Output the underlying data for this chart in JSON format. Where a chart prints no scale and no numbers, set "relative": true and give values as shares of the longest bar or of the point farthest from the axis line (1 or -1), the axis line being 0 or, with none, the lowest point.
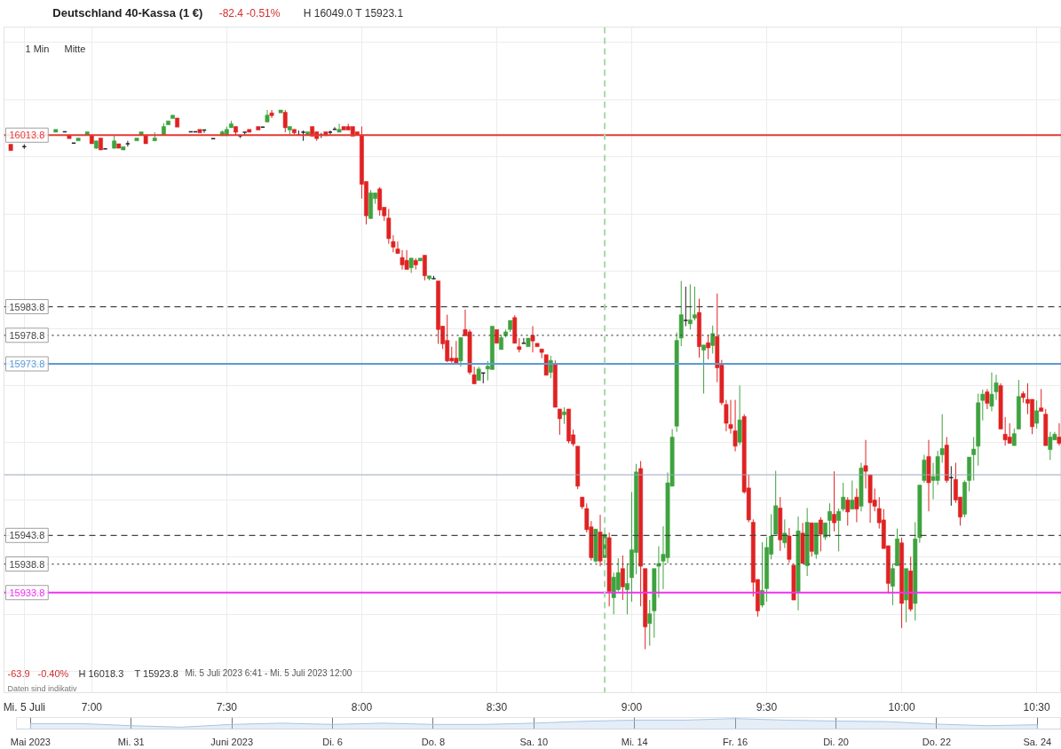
{
  "chart_data": [
    {
      "type": "candlestick",
      "title": "Deutschland 40-Kassa (1 €)",
      "subtitle": "-82.4 -0.51% H 16049.0 T 15923.1",
      "annotations": [
        "1 Min",
        "Mitte",
        "-63.9",
        "-0.40%",
        "H 16018.3",
        "T 15923.8",
        "Mi. 5 Juli 2023 6:41 - Mi. 5 Juli 2023 12:00",
        "Daten sind indikativ"
      ],
      "x": [
        "2023-07-05T06:42",
        "2023-07-05T06:45",
        "2023-07-05T06:52",
        "2023-07-05T06:54",
        "2023-07-05T06:55",
        "2023-07-05T06:56",
        "2023-07-05T06:57",
        "2023-07-05T06:59",
        "2023-07-05T07:00",
        "2023-07-05T07:01",
        "2023-07-05T07:02",
        "2023-07-05T07:03",
        "2023-07-05T07:05",
        "2023-07-05T07:06",
        "2023-07-05T07:07",
        "2023-07-05T07:08",
        "2023-07-05T07:10",
        "2023-07-05T07:11",
        "2023-07-05T07:12",
        "2023-07-05T07:14",
        "2023-07-05T07:16",
        "2023-07-05T07:17",
        "2023-07-05T07:18",
        "2023-07-05T07:19",
        "2023-07-05T07:22",
        "2023-07-05T07:23",
        "2023-07-05T07:24",
        "2023-07-05T07:25",
        "2023-07-05T07:27",
        "2023-07-05T07:29",
        "2023-07-05T07:30",
        "2023-07-05T07:31",
        "2023-07-05T07:32",
        "2023-07-05T07:33",
        "2023-07-05T07:34",
        "2023-07-05T07:35",
        "2023-07-05T07:37",
        "2023-07-05T07:38",
        "2023-07-05T07:39",
        "2023-07-05T07:40",
        "2023-07-05T07:42",
        "2023-07-05T07:43",
        "2023-07-05T07:44",
        "2023-07-05T07:45",
        "2023-07-05T07:46",
        "2023-07-05T07:47",
        "2023-07-05T07:48",
        "2023-07-05T07:49",
        "2023-07-05T07:50",
        "2023-07-05T07:51",
        "2023-07-05T07:52",
        "2023-07-05T07:53",
        "2023-07-05T07:54",
        "2023-07-05T07:55",
        "2023-07-05T07:56",
        "2023-07-05T07:57",
        "2023-07-05T07:58",
        "2023-07-05T07:59",
        "2023-07-05T08:00",
        "2023-07-05T08:01",
        "2023-07-05T08:02",
        "2023-07-05T08:03",
        "2023-07-05T08:04",
        "2023-07-05T08:05",
        "2023-07-05T08:06",
        "2023-07-05T08:07",
        "2023-07-05T08:08",
        "2023-07-05T08:09",
        "2023-07-05T08:10",
        "2023-07-05T08:11",
        "2023-07-05T08:12",
        "2023-07-05T08:13",
        "2023-07-05T08:14",
        "2023-07-05T08:15",
        "2023-07-05T08:16",
        "2023-07-05T08:17",
        "2023-07-05T08:18",
        "2023-07-05T08:19",
        "2023-07-05T08:20",
        "2023-07-05T08:21",
        "2023-07-05T08:22",
        "2023-07-05T08:23",
        "2023-07-05T08:24",
        "2023-07-05T08:25",
        "2023-07-05T08:26",
        "2023-07-05T08:27",
        "2023-07-05T08:28",
        "2023-07-05T08:29",
        "2023-07-05T08:30",
        "2023-07-05T08:31",
        "2023-07-05T08:32",
        "2023-07-05T08:33",
        "2023-07-05T08:34",
        "2023-07-05T08:35",
        "2023-07-05T08:36",
        "2023-07-05T08:37",
        "2023-07-05T08:38",
        "2023-07-05T08:39",
        "2023-07-05T08:40",
        "2023-07-05T08:41",
        "2023-07-05T08:42",
        "2023-07-05T08:43",
        "2023-07-05T08:44",
        "2023-07-05T08:45",
        "2023-07-05T08:46",
        "2023-07-05T08:47",
        "2023-07-05T08:48",
        "2023-07-05T08:49",
        "2023-07-05T08:50",
        "2023-07-05T08:51",
        "2023-07-05T08:52",
        "2023-07-05T08:53",
        "2023-07-05T08:54",
        "2023-07-05T08:55",
        "2023-07-05T08:56",
        "2023-07-05T08:57",
        "2023-07-05T08:58",
        "2023-07-05T08:59",
        "2023-07-05T09:00",
        "2023-07-05T09:01",
        "2023-07-05T09:02",
        "2023-07-05T09:03",
        "2023-07-05T09:04",
        "2023-07-05T09:05",
        "2023-07-05T09:06",
        "2023-07-05T09:07",
        "2023-07-05T09:08",
        "2023-07-05T09:09",
        "2023-07-05T09:10",
        "2023-07-05T09:11",
        "2023-07-05T09:12",
        "2023-07-05T09:13",
        "2023-07-05T09:14",
        "2023-07-05T09:15",
        "2023-07-05T09:16",
        "2023-07-05T09:17",
        "2023-07-05T09:18",
        "2023-07-05T09:19",
        "2023-07-05T09:20",
        "2023-07-05T09:21",
        "2023-07-05T09:22",
        "2023-07-05T09:23",
        "2023-07-05T09:24",
        "2023-07-05T09:25",
        "2023-07-05T09:26",
        "2023-07-05T09:27",
        "2023-07-05T09:28",
        "2023-07-05T09:29",
        "2023-07-05T09:30",
        "2023-07-05T09:31",
        "2023-07-05T09:32",
        "2023-07-05T09:33",
        "2023-07-05T09:34",
        "2023-07-05T09:35",
        "2023-07-05T09:36",
        "2023-07-05T09:37",
        "2023-07-05T09:38",
        "2023-07-05T09:39",
        "2023-07-05T09:40",
        "2023-07-05T09:41",
        "2023-07-05T09:42",
        "2023-07-05T09:43",
        "2023-07-05T09:44",
        "2023-07-05T09:45",
        "2023-07-05T09:46",
        "2023-07-05T09:47",
        "2023-07-05T09:48",
        "2023-07-05T09:49",
        "2023-07-05T09:50",
        "2023-07-05T09:51",
        "2023-07-05T09:52",
        "2023-07-05T09:53",
        "2023-07-05T09:54",
        "2023-07-05T09:55",
        "2023-07-05T09:56",
        "2023-07-05T09:57",
        "2023-07-05T09:58",
        "2023-07-05T09:59",
        "2023-07-05T10:00",
        "2023-07-05T10:01",
        "2023-07-05T10:02",
        "2023-07-05T10:03",
        "2023-07-05T10:04",
        "2023-07-05T10:05",
        "2023-07-05T10:06",
        "2023-07-05T10:07",
        "2023-07-05T10:08",
        "2023-07-05T10:09",
        "2023-07-05T10:10",
        "2023-07-05T10:11",
        "2023-07-05T10:12",
        "2023-07-05T10:13",
        "2023-07-05T10:14",
        "2023-07-05T10:15",
        "2023-07-05T10:16",
        "2023-07-05T10:17",
        "2023-07-05T10:18",
        "2023-07-05T10:19",
        "2023-07-05T10:20",
        "2023-07-05T10:21",
        "2023-07-05T10:22",
        "2023-07-05T10:23",
        "2023-07-05T10:24",
        "2023-07-05T10:25",
        "2023-07-05T10:26",
        "2023-07-05T10:27",
        "2023-07-05T10:28",
        "2023-07-05T10:29",
        "2023-07-05T10:30",
        "2023-07-05T10:31",
        "2023-07-05T10:32",
        "2023-07-05T10:33",
        "2023-07-05T10:34",
        "2023-07-05T10:35"
      ],
      "ohlc": [
        [
          16012.2,
          16012.2,
          16011.1,
          16011.1
        ],
        [
          16011.8,
          16012.2,
          16011.4,
          16011.8
        ],
        [
          16014.3,
          16014.8,
          16014.3,
          16014.8
        ],
        [
          16014.4,
          16014.4,
          16014.4,
          16014.4
        ],
        [
          16013.8,
          16013.8,
          16013.2,
          16013.2
        ],
        [
          16012.4,
          16012.4,
          16012.4,
          16012.4
        ],
        [
          16012.8,
          16013.3,
          16012.8,
          16013.3
        ],
        [
          16013.8,
          16014.4,
          16013.8,
          16014.4
        ],
        [
          16013.8,
          16013.8,
          16012.3,
          16012.3
        ],
        [
          16011.5,
          16012.8,
          16011.4,
          16012.8
        ],
        [
          16013.3,
          16013.3,
          16011.2,
          16011.2
        ],
        [
          16011.4,
          16011.4,
          16011.4,
          16011.4
        ],
        [
          16011.5,
          16013.7,
          16011.4,
          16012.8
        ],
        [
          16012.3,
          16012.3,
          16011.5,
          16011.5
        ],
        [
          16011.2,
          16011.8,
          16011.2,
          16011.8
        ],
        [
          16012.3,
          16012.8,
          16011.8,
          16012.3
        ],
        [
          16012.8,
          16013.3,
          16012.8,
          16013.3
        ],
        [
          16013.8,
          16014.4,
          16013.8,
          16014.4
        ],
        [
          16013.8,
          16013.8,
          16012.3,
          16012.3
        ],
        [
          16012.8,
          16014.3,
          16012.8,
          16013.3
        ],
        [
          16013.8,
          16015.9,
          16013.8,
          16015.3
        ],
        [
          16015.6,
          16016.3,
          16015.6,
          16016.3
        ],
        [
          16016.7,
          16017.3,
          16016.7,
          16017.3
        ],
        [
          16016.8,
          16016.8,
          16015.2,
          16015.2
        ],
        [
          16014.4,
          16014.4,
          16014.4,
          16014.4
        ],
        [
          16014.4,
          16014.4,
          16014.4,
          16014.4
        ],
        [
          16014.8,
          16014.8,
          16014.2,
          16014.2
        ],
        [
          16014.7,
          16014.7,
          16014.2,
          16014.7
        ],
        [
          16013.2,
          16013.2,
          16013.2,
          16013.2
        ],
        [
          16013.7,
          16014.6,
          16013.7,
          16014.4
        ],
        [
          16013.7,
          16015.3,
          16013.7,
          16014.8
        ],
        [
          16015.1,
          16016.3,
          16015.1,
          16015.8
        ],
        [
          16015.3,
          16015.3,
          16013.8,
          16014.3
        ],
        [
          16013.7,
          16013.7,
          16013.3,
          16013.7
        ],
        [
          16014.3,
          16014.3,
          16013.9,
          16014.3
        ],
        [
          16014.8,
          16014.8,
          16014.3,
          16014.3
        ],
        [
          16015.3,
          16015.3,
          16014.7,
          16014.7
        ],
        [
          16015.2,
          16015.2,
          16015.2,
          16015.2
        ],
        [
          16016.1,
          16018.2,
          16016.1,
          16017.3
        ],
        [
          16017.7,
          16018.2,
          16016.8,
          16017.2
        ],
        [
          16017.7,
          16018.2,
          16017.7,
          16018.2
        ],
        [
          16017.8,
          16018.2,
          16014.3,
          16015.1
        ],
        [
          16014.7,
          16015.3,
          16013.9,
          16015.3
        ],
        [
          16014.8,
          16014.8,
          16013.9,
          16014.2
        ],
        [
          16013.8,
          16014.6,
          16013.7,
          16013.8
        ],
        [
          16014.3,
          16014.6,
          16012.8,
          16014.3
        ],
        [
          16013.8,
          16014.4,
          16013.8,
          16014.4
        ],
        [
          16015.3,
          16015.3,
          16013.6,
          16013.6
        ],
        [
          16014.4,
          16014.4,
          16012.8,
          16013.2
        ],
        [
          16013.8,
          16014.2,
          16013.3,
          16013.8
        ],
        [
          16014.4,
          16014.4,
          16013.7,
          16013.7
        ],
        [
          16014.3,
          16014.6,
          16013.9,
          16014.3
        ],
        [
          16014.8,
          16015.2,
          16014.8,
          16014.8
        ],
        [
          16014.3,
          16015.8,
          16014.3,
          16014.8
        ],
        [
          16015.3,
          16015.3,
          16014.7,
          16014.7
        ],
        [
          16015.3,
          16015.8,
          16014.7,
          16014.7
        ],
        [
          16015.3,
          16015.3,
          16013.6,
          16013.6
        ],
        [
          16014.4,
          16014.4,
          16013.8,
          16013.8
        ],
        [
          16013.8,
          16015.3,
          16002.7,
          16005.2
        ],
        [
          16005.7,
          16005.7,
          15998.2,
          15999.7
        ],
        [
          15999.2,
          16004.2,
          15999.2,
          16003.7
        ],
        [
          16002.7,
          16003.7,
          16001.8,
          16003.7
        ],
        [
          16004.4,
          16004.7,
          15999.7,
          16000.7
        ],
        [
          16001.2,
          16001.2,
          15998.8,
          15999.7
        ],
        [
          15999.3,
          16000.9,
          15994.8,
          15995.7
        ],
        [
          15995.2,
          15996.3,
          15993.3,
          15994.2
        ],
        [
          15993.9,
          15995.2,
          15993.1,
          15993.1
        ],
        [
          15992.4,
          15993.7,
          15990.3,
          15991.1
        ],
        [
          15991.9,
          15993.7,
          15990.3,
          15990.3
        ],
        [
          15990.6,
          15992.3,
          15989.7,
          15992.3
        ],
        [
          15991.9,
          15992.3,
          15990.3,
          15991.1
        ],
        [
          15991.8,
          15992.3,
          15991.8,
          15992.3
        ],
        [
          15992.8,
          15992.8,
          15988.4,
          15989.2
        ],
        [
          15988.7,
          15989.2,
          15988.4,
          15989.2
        ],
        [
          15988.7,
          15989.2,
          15988.7,
          15988.7
        ],
        [
          15988.3,
          15988.3,
          15977.3,
          15979.8
        ],
        [
          15980.4,
          15980.4,
          15976.4,
          15977.3
        ],
        [
          15977.9,
          15982.4,
          15974.1,
          15974.3
        ],
        [
          15974.8,
          15976.8,
          15974.0,
          15974.3
        ],
        [
          15974.8,
          15977.8,
          15973.9,
          15973.9
        ],
        [
          15974.3,
          15978.4,
          15973.3,
          15978.4
        ],
        [
          15979.8,
          15983.3,
          15978.7,
          15978.7
        ],
        [
          15979.4,
          15979.8,
          15971.9,
          15972.3
        ],
        [
          15971.9,
          15973.3,
          15970.3,
          15970.3
        ],
        [
          15970.9,
          15973.3,
          15970.9,
          15972.9
        ],
        [
          15972.2,
          15972.2,
          15970.4,
          15972.2
        ],
        [
          15972.9,
          15974.3,
          15970.9,
          15973.4
        ],
        [
          15972.8,
          15980.4,
          15972.8,
          15980.4
        ],
        [
          15979.8,
          15979.8,
          15977.4,
          15977.4
        ],
        [
          15976.3,
          15978.8,
          15976.3,
          15978.4
        ],
        [
          15978.7,
          15979.8,
          15978.4,
          15979.4
        ],
        [
          15979.8,
          15981.4,
          15979.4,
          15981.4
        ],
        [
          15981.9,
          15982.3,
          15977.4,
          15977.4
        ],
        [
          15976.8,
          15978.3,
          15975.8,
          15976.3
        ],
        [
          15977.4,
          15978.3,
          15977.4,
          15977.4
        ],
        [
          15976.8,
          15978.3,
          15976.8,
          15978.3
        ],
        [
          15978.8,
          15980.4,
          15975.8,
          15977.8
        ],
        [
          15977.4,
          15977.4,
          15976.8,
          15976.8
        ],
        [
          15976.4,
          15976.4,
          15974.8,
          15975.8
        ],
        [
          15975.4,
          15975.4,
          15971.8,
          15971.8
        ],
        [
          15972.3,
          15975.2,
          15971.3,
          15974.4
        ],
        [
          15973.8,
          15974.4,
          15966.2,
          15966.2
        ],
        [
          15965.9,
          15965.9,
          15961.4,
          15964.2
        ],
        [
          15964.9,
          15966.2,
          15963.3,
          15965.4
        ],
        [
          15965.9,
          15965.9,
          15959.9,
          15960.3
        ],
        [
          15961.4,
          15962.3,
          15959.4,
          15959.8
        ],
        [
          15959.4,
          15959.4,
          15951.9,
          15952.4
        ],
        [
          15950.5,
          15950.5,
          15948.4,
          15948.8
        ],
        [
          15948.5,
          15949.4,
          15944.3,
          15944.8
        ],
        [
          15945.3,
          15946.3,
          15939.4,
          15939.9
        ],
        [
          15939.3,
          15944.9,
          15939.0,
          15944.9
        ],
        [
          15944.4,
          15947.4,
          15938.4,
          15939.3
        ],
        [
          15939.9,
          15944.3,
          15939.9,
          15944.0
        ],
        [
          15943.4,
          15944.3,
          15931.4,
          15934.0
        ],
        [
          15932.9,
          15937.3,
          15930.0,
          15936.5
        ],
        [
          15934.3,
          15939.8,
          15934.0,
          15937.3
        ],
        [
          15938.0,
          15940.3,
          15932.5,
          15934.8
        ],
        [
          15934.3,
          15938.9,
          15930.0,
          15935.4
        ],
        [
          15936.4,
          15951.4,
          15932.2,
          15941.3
        ],
        [
          15940.8,
          15956.3,
          15937.0,
          15954.9
        ],
        [
          15955.5,
          15956.8,
          15931.4,
          15938.4
        ],
        [
          15938.0,
          15938.0,
          15923.9,
          15927.8
        ],
        [
          15928.4,
          15932.5,
          15924.5,
          15930.1
        ],
        [
          15930.6,
          15938.0,
          15925.9,
          15938.0
        ],
        [
          15938.4,
          15941.9,
          15932.9,
          15938.9
        ],
        [
          15939.3,
          15945.4,
          15934.4,
          15940.5
        ],
        [
          15939.9,
          15954.8,
          15938.9,
          15953.0
        ],
        [
          15952.4,
          15962.4,
          15952.4,
          15961.0
        ],
        [
          15962.9,
          15979.3,
          15961.9,
          15977.9
        ],
        [
          15978.3,
          15988.3,
          15976.9,
          15982.4
        ],
        [
          15981.4,
          15987.3,
          15980.4,
          15981.4
        ],
        [
          15980.8,
          15987.7,
          15979.8,
          15981.5
        ],
        [
          15981.8,
          15987.3,
          15981.4,
          15982.4
        ],
        [
          15982.8,
          15985.2,
          15974.9,
          15976.8
        ],
        [
          15976.2,
          15977.1,
          15968.6,
          15977.1
        ],
        [
          15977.5,
          15978.9,
          15974.6,
          15976.6
        ],
        [
          15977.0,
          15980.5,
          15975.6,
          15979.1
        ],
        [
          15978.6,
          15986.1,
          15970.6,
          15973.1
        ],
        [
          15973.6,
          15974.5,
          15966.6,
          15967.0
        ],
        [
          15966.7,
          15967.5,
          15962.0,
          15963.4
        ],
        [
          15963.2,
          15967.5,
          15961.6,
          15962.5
        ],
        [
          15962.1,
          15967.5,
          15958.5,
          15959.4
        ],
        [
          15960.1,
          15970.0,
          15959.6,
          15964.0
        ],
        [
          15964.6,
          15965.0,
          15951.1,
          15951.4
        ],
        [
          15952.1,
          15954.4,
          15946.1,
          15946.5
        ],
        [
          15946.1,
          15946.6,
          15933.1,
          15935.6
        ],
        [
          15936.1,
          15936.1,
          15929.6,
          15930.6
        ],
        [
          15931.6,
          15942.6,
          15931.2,
          15934.2
        ],
        [
          15934.5,
          15943.5,
          15932.2,
          15941.7
        ],
        [
          15940.5,
          15947.5,
          15939.6,
          15943.7
        ],
        [
          15944.0,
          15955.1,
          15944.0,
          15949.0
        ],
        [
          15948.6,
          15950.5,
          15941.1,
          15943.0
        ],
        [
          15942.5,
          15946.6,
          15941.6,
          15944.2
        ],
        [
          15943.7,
          15945.1,
          15939.0,
          15939.6
        ],
        [
          15938.6,
          15938.6,
          15932.5,
          15932.5
        ],
        [
          15934.0,
          15947.1,
          15930.7,
          15944.6
        ],
        [
          15944.2,
          15946.0,
          15938.9,
          15938.9
        ],
        [
          15938.5,
          15948.6,
          15936.7,
          15946.1
        ],
        [
          15946.0,
          15946.0,
          15940.1,
          15941.0
        ],
        [
          15940.5,
          15946.0,
          15939.7,
          15946.0
        ],
        [
          15946.5,
          15947.0,
          15941.0,
          15944.0
        ],
        [
          15943.5,
          15946.0,
          15943.0,
          15946.0
        ],
        [
          15946.4,
          15949.4,
          15943.5,
          15948.0
        ],
        [
          15947.5,
          15955.0,
          15944.5,
          15946.0
        ],
        [
          15946.4,
          15948.5,
          15941.0,
          15948.0
        ],
        [
          15948.4,
          15953.0,
          15948.0,
          15950.5
        ],
        [
          15950.0,
          15950.5,
          15945.5,
          15947.9
        ],
        [
          15948.4,
          15953.4,
          15948.4,
          15950.0
        ],
        [
          15950.5,
          15952.0,
          15946.1,
          15948.4
        ],
        [
          15948.9,
          15956.5,
          15948.0,
          15955.6
        ],
        [
          15956.0,
          15960.5,
          15952.0,
          15955.0
        ],
        [
          15954.4,
          15954.4,
          15946.0,
          15949.5
        ],
        [
          15950.0,
          15952.0,
          15948.0,
          15948.9
        ],
        [
          15948.5,
          15950.5,
          15945.0,
          15946.0
        ],
        [
          15946.5,
          15948.4,
          15941.5,
          15941.5
        ],
        [
          15942.0,
          15942.0,
          15933.6,
          15935.4
        ],
        [
          15934.9,
          15938.9,
          15931.6,
          15938.0
        ],
        [
          15938.5,
          15945.0,
          15938.5,
          15943.2
        ],
        [
          15942.5,
          15943.4,
          15927.6,
          15931.9
        ],
        [
          15932.5,
          15938.0,
          15928.6,
          15938.0
        ],
        [
          15937.6,
          15940.1,
          15930.5,
          15930.9
        ],
        [
          15931.9,
          15946.1,
          15928.9,
          15943.2
        ],
        [
          15943.4,
          15952.6,
          15942.5,
          15952.6
        ],
        [
          15953.4,
          15957.9,
          15953.0,
          15957.0
        ],
        [
          15957.6,
          15960.5,
          15948.0,
          15953.0
        ],
        [
          15953.4,
          15956.5,
          15950.1,
          15954.1
        ],
        [
          15953.4,
          15958.6,
          15952.6,
          15957.6
        ],
        [
          15957.9,
          15965.0,
          15956.5,
          15959.0
        ],
        [
          15959.6,
          15961.0,
          15953.0,
          15953.4
        ],
        [
          15953.9,
          15955.9,
          15949.0,
          15953.9
        ],
        [
          15953.6,
          15956.5,
          15949.5,
          15950.0
        ],
        [
          15950.5,
          15950.5,
          15945.5,
          15947.0
        ],
        [
          15947.5,
          15953.4,
          15947.0,
          15953.1
        ],
        [
          15953.4,
          15957.5,
          15951.5,
          15957.5
        ],
        [
          15957.9,
          15961.0,
          15953.4,
          15958.9
        ],
        [
          15959.4,
          15968.6,
          15956.0,
          15967.0
        ],
        [
          15967.4,
          15969.3,
          15963.9,
          15968.5
        ],
        [
          15968.9,
          15969.4,
          15965.9,
          15966.9
        ],
        [
          15966.4,
          15972.3,
          15965.5,
          15968.5
        ],
        [
          15968.9,
          15971.9,
          15967.5,
          15970.5
        ],
        [
          15970.0,
          15970.4,
          15962.4,
          15962.4
        ],
        [
          15961.5,
          15964.5,
          15959.5,
          15960.5
        ],
        [
          15961.0,
          15963.4,
          15959.9,
          15959.9
        ],
        [
          15959.5,
          15962.5,
          15959.5,
          15961.6
        ],
        [
          15962.4,
          15971.0,
          15962.4,
          15968.1
        ],
        [
          15968.6,
          15969.0,
          15967.0,
          15967.9
        ],
        [
          15967.6,
          15970.4,
          15965.0,
          15966.9
        ],
        [
          15967.6,
          15967.6,
          15961.5,
          15962.8
        ],
        [
          15963.4,
          15967.4,
          15962.5,
          15965.6
        ],
        [
          15966.1,
          15969.4,
          15965.5,
          15965.5
        ],
        [
          15965.0,
          15965.9,
          15959.5,
          15959.5
        ],
        [
          15958.8,
          15961.9,
          15957.0,
          15961.0
        ],
        [
          15960.5,
          15961.9,
          15960.5,
          15961.5
        ],
        [
          15961.0,
          15963.4,
          15959.5,
          15959.9
        ]
      ],
      "colors": [
        "#e02222",
        "#222222",
        "#3ea33e",
        "#222222",
        "#e02222",
        "#222222",
        "#3ea33e",
        "#3ea33e",
        "#e02222",
        "#3ea33e",
        "#e02222",
        "#222222",
        "#3ea33e",
        "#e02222",
        "#3ea33e",
        "#222222",
        "#3ea33e",
        "#3ea33e",
        "#e02222",
        "#3ea33e",
        "#3ea33e",
        "#3ea33e",
        "#3ea33e",
        "#e02222",
        "#222222",
        "#222222",
        "#e02222",
        "#222222",
        "#222222",
        "#3ea33e",
        "#3ea33e",
        "#3ea33e",
        "#e02222",
        "#222222",
        "#222222",
        "#e02222",
        "#e02222",
        "#222222",
        "#3ea33e",
        "#e02222",
        "#3ea33e",
        "#e02222",
        "#3ea33e",
        "#e02222",
        "#222222",
        "#222222",
        "#3ea33e",
        "#e02222",
        "#e02222",
        "#222222",
        "#e02222",
        "#222222",
        "#222222",
        "#3ea33e",
        "#e02222",
        "#e02222",
        "#e02222",
        "#e02222",
        "#e02222",
        "#e02222",
        "#3ea33e",
        "#3ea33e",
        "#e02222",
        "#e02222",
        "#e02222",
        "#e02222",
        "#e02222",
        "#e02222",
        "#e02222",
        "#3ea33e",
        "#e02222",
        "#3ea33e",
        "#e02222",
        "#3ea33e",
        "#222222",
        "#e02222",
        "#e02222",
        "#e02222",
        "#e02222",
        "#e02222",
        "#3ea33e",
        "#e02222",
        "#e02222",
        "#e02222",
        "#3ea33e",
        "#222222",
        "#3ea33e",
        "#3ea33e",
        "#e02222",
        "#3ea33e",
        "#3ea33e",
        "#3ea33e",
        "#e02222",
        "#e02222",
        "#222222",
        "#3ea33e",
        "#e02222",
        "#e02222",
        "#e02222",
        "#e02222",
        "#3ea33e",
        "#e02222",
        "#e02222",
        "#3ea33e",
        "#e02222",
        "#e02222",
        "#e02222",
        "#e02222",
        "#e02222",
        "#e02222",
        "#3ea33e",
        "#e02222",
        "#3ea33e",
        "#e02222",
        "#3ea33e",
        "#3ea33e",
        "#e02222",
        "#3ea33e",
        "#3ea33e",
        "#3ea33e",
        "#e02222",
        "#e02222",
        "#3ea33e",
        "#3ea33e",
        "#3ea33e",
        "#3ea33e",
        "#3ea33e",
        "#3ea33e",
        "#3ea33e",
        "#3ea33e",
        "#222222",
        "#3ea33e",
        "#3ea33e",
        "#e02222",
        "#3ea33e",
        "#e02222",
        "#3ea33e",
        "#e02222",
        "#e02222",
        "#e02222",
        "#e02222",
        "#e02222",
        "#3ea33e",
        "#e02222",
        "#e02222",
        "#e02222",
        "#e02222",
        "#3ea33e",
        "#3ea33e",
        "#3ea33e",
        "#3ea33e",
        "#e02222",
        "#3ea33e",
        "#e02222",
        "#e02222",
        "#3ea33e",
        "#e02222",
        "#3ea33e",
        "#e02222",
        "#3ea33e",
        "#e02222",
        "#3ea33e",
        "#3ea33e",
        "#e02222",
        "#3ea33e",
        "#3ea33e",
        "#e02222",
        "#3ea33e",
        "#e02222",
        "#3ea33e",
        "#e02222",
        "#e02222",
        "#e02222",
        "#e02222",
        "#e02222",
        "#e02222",
        "#3ea33e",
        "#3ea33e",
        "#e02222",
        "#3ea33e",
        "#e02222",
        "#3ea33e",
        "#3ea33e",
        "#3ea33e",
        "#e02222",
        "#3ea33e",
        "#3ea33e",
        "#3ea33e",
        "#e02222",
        "#222222",
        "#e02222",
        "#e02222",
        "#3ea33e",
        "#3ea33e",
        "#3ea33e",
        "#3ea33e",
        "#3ea33e",
        "#e02222",
        "#3ea33e",
        "#3ea33e",
        "#e02222",
        "#e02222",
        "#e02222",
        "#3ea33e",
        "#3ea33e",
        "#e02222",
        "#e02222",
        "#e02222",
        "#3ea33e",
        "#e02222",
        "#e02222",
        "#3ea33e",
        "#3ea33e",
        "#e02222"
      ],
      "xlim": [
        "2023-07-05T06:40:30",
        "2023-07-05T10:35:30"
      ],
      "ylim": [
        15916.3,
        16032.7
      ],
      "xticks": [
        {
          "value": "2023-07-05T06:45",
          "label": "Mi. 5 Juli"
        },
        {
          "value": "2023-07-05T07:00",
          "label": "7:00"
        },
        {
          "value": "2023-07-05T07:30",
          "label": "7:30"
        },
        {
          "value": "2023-07-05T08:00",
          "label": "8:00"
        },
        {
          "value": "2023-07-05T08:30",
          "label": "8:30"
        },
        {
          "value": "2023-07-05T09:00",
          "label": "9:00"
        },
        {
          "value": "2023-07-05T09:30",
          "label": "9:30"
        },
        {
          "value": "2023-07-05T10:00",
          "label": "10:00"
        },
        {
          "value": "2023-07-05T10:30",
          "label": "10:30"
        }
      ],
      "yticks": [
        15920,
        15930,
        15940,
        15950,
        15960,
        15970,
        15980,
        15990,
        16000,
        16010,
        16020,
        16030
      ],
      "tick_labels": "x",
      "grid": true,
      "ref_lines": [
        {
          "axis": "y",
          "value": 16013.8,
          "label": "16013.8",
          "color": "#e53935",
          "line_style": "solid"
        },
        {
          "axis": "y",
          "value": 15983.8,
          "label": "15983.8",
          "color": "#444444",
          "line_style": "dashed"
        },
        {
          "axis": "y",
          "value": 15978.8,
          "label": "15978.8",
          "color": "#444444",
          "line_style": "dotted"
        },
        {
          "axis": "y",
          "value": 15973.8,
          "label": "15973.8",
          "color": "#5b9bd5",
          "line_style": "solid"
        },
        {
          "axis": "y",
          "value": 15954.4,
          "color": "#9aa6bb",
          "line_style": "solid"
        },
        {
          "axis": "y",
          "value": 15943.8,
          "label": "15943.8",
          "color": "#444444",
          "line_style": "dashed"
        },
        {
          "axis": "y",
          "value": 15938.8,
          "label": "15938.8",
          "color": "#444444",
          "line_style": "dotted"
        },
        {
          "axis": "y",
          "value": 15933.8,
          "label": "15933.8",
          "color": "#ee33ee",
          "line_style": "solid"
        },
        {
          "axis": "x",
          "value": "2023-07-05T08:54",
          "color": "#a8d8a8",
          "line_style": "dashed"
        }
      ]
    },
    {
      "type": "area",
      "relative": true,
      "grid": "x",
      "categories": [
        "Mai 2023",
        null,
        "Mi. 31",
        null,
        "Juni 2023",
        null,
        "Di. 6",
        null,
        "Do. 8",
        null,
        "Sa. 10",
        null,
        "Mi. 14",
        null,
        "Fr. 16",
        null,
        "Di. 20",
        null,
        "Do. 22",
        null,
        "Sa. 24"
      ],
      "values": [
        0.52,
        0.52,
        0.32,
        0.18,
        0.44,
        0.56,
        0.44,
        0.56,
        0.44,
        0.44,
        0.56,
        0.74,
        0.85,
        0.85,
        1,
        0.85,
        0.76,
        0.71,
        0.47,
        0.32,
        0.41
      ],
      "color": "#a8c5e4"
    }
  ]
}
